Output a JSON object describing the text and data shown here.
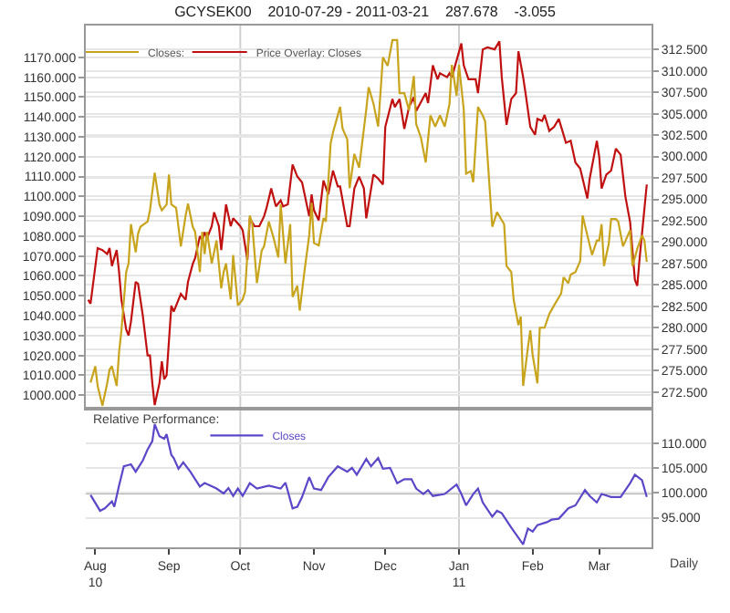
{
  "chart_data": [
    {
      "type": "line",
      "title": "GCYSEK00    2010-07-29 - 2011-03-21    287.678    -3.055",
      "legend": "top left",
      "grid": "y",
      "marker": "none",
      "line_style": "solid",
      "tick_labels": "y",
      "xlim": [
        "2010-07-28",
        "2011-03-23"
      ],
      "ylim": [
        993,
        1186
      ],
      "yticks": [
        {
          "value": 1000,
          "label": "1000.000"
        },
        {
          "value": 1010,
          "label": "1010.000"
        },
        {
          "value": 1020,
          "label": "1020.000"
        },
        {
          "value": 1030,
          "label": "1030.000"
        },
        {
          "value": 1040,
          "label": "1040.000"
        },
        {
          "value": 1050,
          "label": "1050.000"
        },
        {
          "value": 1060,
          "label": "1060.000"
        },
        {
          "value": 1070,
          "label": "1070.000"
        },
        {
          "value": 1080,
          "label": "1080.000"
        },
        {
          "value": 1090,
          "label": "1090.000"
        },
        {
          "value": 1100,
          "label": "1100.000"
        },
        {
          "value": 1110,
          "label": "1110.000"
        },
        {
          "value": 1120,
          "label": "1120.000"
        },
        {
          "value": 1130,
          "label": "1130.000"
        },
        {
          "value": 1140,
          "label": "1140.000"
        },
        {
          "value": 1150,
          "label": "1150.000"
        },
        {
          "value": 1160,
          "label": "1160.000"
        },
        {
          "value": 1170,
          "label": "1170.000"
        }
      ],
      "y2lim": [
        270.5,
        315.3
      ],
      "y2ticks": [
        {
          "value": 272.5,
          "label": "272.500"
        },
        {
          "value": 275,
          "label": "275.000"
        },
        {
          "value": 277.5,
          "label": "277.500"
        },
        {
          "value": 280,
          "label": "280.000"
        },
        {
          "value": 282.5,
          "label": "282.500"
        },
        {
          "value": 285,
          "label": "285.000"
        },
        {
          "value": 287.5,
          "label": "287.500"
        },
        {
          "value": 290,
          "label": "290.000"
        },
        {
          "value": 292.5,
          "label": "292.500"
        },
        {
          "value": 295,
          "label": "295.000"
        },
        {
          "value": 297.5,
          "label": "297.500"
        },
        {
          "value": 300,
          "label": "300.000"
        },
        {
          "value": 302.5,
          "label": "302.500"
        },
        {
          "value": 305,
          "label": "305.000"
        },
        {
          "value": 307.5,
          "label": "307.500"
        },
        {
          "value": 310,
          "label": "310.000"
        },
        {
          "value": 312.5,
          "label": "312.500"
        }
      ],
      "ref_lines": [
        {
          "axis": "x",
          "value": "2010-10-01",
          "color": "#d0d0d0"
        },
        {
          "axis": "x",
          "value": "2011-01-01",
          "color": "#d0d0d0"
        }
      ],
      "series": [
        {
          "name": "Closes:",
          "color": "#c8a41c",
          "axis": "y2",
          "x": [
            "2010-07-30",
            "2010-08-01",
            "2010-08-02",
            "2010-08-04",
            "2010-08-06",
            "2010-08-07",
            "2010-08-08",
            "2010-08-10",
            "2010-08-11",
            "2010-08-12",
            "2010-08-14",
            "2010-08-15",
            "2010-08-16",
            "2010-08-18",
            "2010-08-19",
            "2010-08-20",
            "2010-08-23",
            "2010-08-24",
            "2010-08-26",
            "2010-08-28",
            "2010-08-29",
            "2010-08-31",
            "2010-09-01",
            "2010-09-02",
            "2010-09-04",
            "2010-09-06",
            "2010-09-08",
            "2010-09-09",
            "2010-09-11",
            "2010-09-12",
            "2010-09-14",
            "2010-09-15",
            "2010-09-16",
            "2010-09-17",
            "2010-09-19",
            "2010-09-21",
            "2010-09-23",
            "2010-09-24",
            "2010-09-25",
            "2010-09-27",
            "2010-09-28",
            "2010-09-30",
            "2010-10-02",
            "2010-10-03",
            "2010-10-05",
            "2010-10-06",
            "2010-10-08",
            "2010-10-10",
            "2010-10-11",
            "2010-10-13",
            "2010-10-15",
            "2010-10-17",
            "2010-10-18",
            "2010-10-20",
            "2010-10-22",
            "2010-10-23",
            "2010-10-25",
            "2010-10-26",
            "2010-10-28",
            "2010-10-30",
            "2010-10-31",
            "2010-11-01",
            "2010-11-03",
            "2010-11-05",
            "2010-11-06",
            "2010-11-08",
            "2010-11-09",
            "2010-11-12",
            "2010-11-13",
            "2010-11-15",
            "2010-11-16",
            "2010-11-18",
            "2010-11-20",
            "2010-11-23",
            "2010-11-24",
            "2010-11-26",
            "2010-11-28",
            "2010-11-30",
            "2010-12-02",
            "2010-12-04",
            "2010-12-06",
            "2010-12-07",
            "2010-12-09",
            "2010-12-11",
            "2010-12-13",
            "2010-12-14",
            "2010-12-16",
            "2010-12-18",
            "2010-12-20",
            "2010-12-22",
            "2010-12-24",
            "2010-12-26",
            "2010-12-28",
            "2010-12-29",
            "2010-12-31",
            "2011-01-01",
            "2011-01-03",
            "2011-01-04",
            "2011-01-06",
            "2011-01-07",
            "2011-01-09",
            "2011-01-11",
            "2011-01-12",
            "2011-01-15",
            "2011-01-17",
            "2011-01-20",
            "2011-01-21",
            "2011-01-23",
            "2011-01-24",
            "2011-01-26",
            "2011-01-27",
            "2011-01-28",
            "2011-01-30",
            "2011-01-31",
            "2011-02-01",
            "2011-02-03",
            "2011-02-04",
            "2011-02-06",
            "2011-02-08",
            "2011-02-10",
            "2011-02-13",
            "2011-02-14",
            "2011-02-16",
            "2011-02-17",
            "2011-02-19",
            "2011-02-21",
            "2011-02-22",
            "2011-02-24",
            "2011-02-26",
            "2011-02-28",
            "2011-03-01",
            "2011-03-02",
            "2011-03-03",
            "2011-03-05",
            "2011-03-06",
            "2011-03-08",
            "2011-03-09",
            "2011-03-11",
            "2011-03-14",
            "2011-03-15",
            "2011-03-17",
            "2011-03-19",
            "2011-03-20",
            "2011-03-21"
          ],
          "values": [
            273.6,
            275.5,
            273.2,
            270.9,
            273.5,
            275.1,
            275.5,
            273.2,
            277.1,
            279.7,
            286.5,
            287.5,
            292.1,
            288.8,
            291,
            291.8,
            292.4,
            293.7,
            298.1,
            294.4,
            293.7,
            294.4,
            297.9,
            294.4,
            294,
            289.5,
            293.1,
            294.5,
            291.8,
            291.2,
            286.5,
            291.2,
            288.6,
            291.2,
            287.5,
            290.2,
            284.6,
            286.5,
            287.5,
            283.3,
            288.5,
            282.6,
            283.3,
            284.2,
            293.1,
            292.2,
            285.2,
            289,
            289.5,
            292.4,
            290.5,
            288.2,
            294.4,
            287.5,
            292.1,
            283.6,
            284.9,
            282,
            286.6,
            290.8,
            294.6,
            289.9,
            289.6,
            292.8,
            292.4,
            301.5,
            302.8,
            305.8,
            303.3,
            302,
            296.3,
            300.3,
            298.7,
            305.5,
            308.1,
            306.2,
            303.5,
            311.6,
            310.6,
            313.6,
            313.6,
            307.4,
            307.4,
            305.4,
            309.4,
            303.8,
            302.2,
            299.3,
            304.8,
            303.5,
            304.8,
            303.5,
            306.1,
            310.7,
            307.1,
            310.7,
            305.5,
            298,
            298.3,
            297,
            305.8,
            304.8,
            304.1,
            291.8,
            293.5,
            292.1,
            287.2,
            286.5,
            283.3,
            280.3,
            281.3,
            273.2,
            277.7,
            279.7,
            276.8,
            273.5,
            280,
            280,
            281.6,
            282.6,
            284,
            285.9,
            285.2,
            286.2,
            286.5,
            287.8,
            293.1,
            290.8,
            288.5,
            290.2,
            290.2,
            292.1,
            287.2,
            289.8,
            292.7,
            292.7,
            292.4,
            289.5,
            291.4,
            287.2,
            289.2,
            290.8,
            290.2,
            287.7
          ]
        },
        {
          "name": "Price Overlay: Closes",
          "color": "#c01010",
          "axis": "y",
          "x": [
            "2010-07-29",
            "2010-07-30",
            "2010-08-02",
            "2010-08-04",
            "2010-08-06",
            "2010-08-07",
            "2010-08-08",
            "2010-08-10",
            "2010-08-11",
            "2010-08-12",
            "2010-08-14",
            "2010-08-15",
            "2010-08-16",
            "2010-08-18",
            "2010-08-19",
            "2010-08-21",
            "2010-08-23",
            "2010-08-24",
            "2010-08-25",
            "2010-08-26",
            "2010-08-28",
            "2010-08-29",
            "2010-08-30",
            "2010-08-31",
            "2010-09-02",
            "2010-09-03",
            "2010-09-05",
            "2010-09-06",
            "2010-09-08",
            "2010-09-09",
            "2010-09-11",
            "2010-09-12",
            "2010-09-14",
            "2010-09-15",
            "2010-09-16",
            "2010-09-17",
            "2010-09-19",
            "2010-09-20",
            "2010-09-22",
            "2010-09-23",
            "2010-09-25",
            "2010-09-27",
            "2010-09-28",
            "2010-10-01",
            "2010-10-02",
            "2010-10-04",
            "2010-10-05",
            "2010-10-07",
            "2010-10-09",
            "2010-10-11",
            "2010-10-12",
            "2010-10-14",
            "2010-10-16",
            "2010-10-18",
            "2010-10-19",
            "2010-10-21",
            "2010-10-23",
            "2010-10-25",
            "2010-10-27",
            "2010-10-30",
            "2010-10-31",
            "2010-11-01",
            "2010-11-03",
            "2010-11-05",
            "2010-11-07",
            "2010-11-09",
            "2010-11-11",
            "2010-11-12",
            "2010-11-15",
            "2010-11-16",
            "2010-11-18",
            "2010-11-20",
            "2010-11-22",
            "2010-11-23",
            "2010-11-26",
            "2010-11-28",
            "2010-11-30",
            "2010-12-01",
            "2010-12-04",
            "2010-12-05",
            "2010-12-07",
            "2010-12-09",
            "2010-12-11",
            "2010-12-13",
            "2010-12-14",
            "2010-12-18",
            "2010-12-19",
            "2010-12-21",
            "2010-12-23",
            "2010-12-24",
            "2010-12-27",
            "2010-12-28",
            "2010-12-29",
            "2011-01-02",
            "2011-01-03",
            "2011-01-05",
            "2011-01-08",
            "2011-01-09",
            "2011-01-11",
            "2011-01-13",
            "2011-01-16",
            "2011-01-18",
            "2011-01-19",
            "2011-01-21",
            "2011-01-23",
            "2011-01-25",
            "2011-01-26",
            "2011-01-28",
            "2011-01-29",
            "2011-01-31",
            "2011-02-02",
            "2011-02-03",
            "2011-02-05",
            "2011-02-06",
            "2011-02-08",
            "2011-02-10",
            "2011-02-12",
            "2011-02-15",
            "2011-02-17",
            "2011-02-19",
            "2011-02-21",
            "2011-02-24",
            "2011-02-25",
            "2011-02-28",
            "2011-03-01",
            "2011-03-02",
            "2011-03-04",
            "2011-03-06",
            "2011-03-08",
            "2011-03-10",
            "2011-03-12",
            "2011-03-14",
            "2011-03-16",
            "2011-03-17",
            "2011-03-18",
            "2011-03-21"
          ],
          "values": [
            1048,
            1046,
            1074,
            1073,
            1071,
            1074,
            1065,
            1073,
            1062,
            1048,
            1033,
            1030,
            1037,
            1057,
            1056,
            1040,
            1020,
            1020,
            1006,
            995,
            1006,
            1017,
            1008,
            1010,
            1045,
            1042,
            1048,
            1051,
            1048,
            1057,
            1066,
            1069,
            1080,
            1078,
            1082,
            1079,
            1085,
            1092,
            1085,
            1073,
            1096,
            1085,
            1089,
            1085,
            1083,
            1068,
            1089,
            1085,
            1085,
            1090,
            1094,
            1104,
            1095,
            1098,
            1095,
            1096,
            1116,
            1110,
            1107,
            1090,
            1101,
            1093,
            1088,
            1108,
            1101,
            1113,
            1105,
            1105,
            1085,
            1085,
            1104,
            1110,
            1104,
            1089,
            1111,
            1109,
            1106,
            1135,
            1149,
            1145,
            1149,
            1134,
            1145,
            1150,
            1143,
            1152,
            1147,
            1166,
            1159,
            1162,
            1160,
            1162,
            1160,
            1177,
            1166,
            1159,
            1159,
            1152,
            1174,
            1175,
            1174,
            1178,
            1160,
            1136,
            1149,
            1152,
            1173,
            1160,
            1152,
            1135,
            1131,
            1139,
            1138,
            1141,
            1133,
            1135,
            1139,
            1127,
            1128,
            1117,
            1114,
            1099,
            1109,
            1128,
            1120,
            1104,
            1111,
            1113,
            1124,
            1121,
            1100,
            1087,
            1058,
            1055,
            1069,
            1106
          ]
        }
      ]
    },
    {
      "type": "line",
      "title": "Relative Performance:",
      "legend": "top left",
      "grid": "y",
      "marker": "none",
      "line_style": "solid",
      "xlim": [
        "2010-07-28",
        "2011-03-23"
      ],
      "xticks": [
        {
          "value": "2010-08-01",
          "label": "Aug\n10"
        },
        {
          "value": "2010-09-01",
          "label": "Sep"
        },
        {
          "value": "2010-10-01",
          "label": "Oct"
        },
        {
          "value": "2010-11-01",
          "label": "Nov"
        },
        {
          "value": "2010-12-01",
          "label": "Dec"
        },
        {
          "value": "2011-01-01",
          "label": "Jan\n11"
        },
        {
          "value": "2011-02-01",
          "label": "Feb"
        },
        {
          "value": "2011-03-01",
          "label": "Mar"
        }
      ],
      "y2lim": [
        89,
        117
      ],
      "y2ticks": [
        {
          "value": 95,
          "label": "95.000"
        },
        {
          "value": 100,
          "label": "100.000"
        },
        {
          "value": 105,
          "label": "105.000"
        },
        {
          "value": 110,
          "label": "110.000"
        }
      ],
      "ref_lines": [
        {
          "axis": "x",
          "value": "2010-10-01",
          "color": "#d0d0d0"
        },
        {
          "axis": "x",
          "value": "2011-01-01",
          "color": "#d0d0d0"
        },
        {
          "axis": "y2",
          "value": 100,
          "color": "#b0b0b0"
        }
      ],
      "annotations": [
        "Daily"
      ],
      "series": [
        {
          "name": "Closes",
          "color": "#5a48c8",
          "axis": "y2",
          "x": [
            "2010-07-30",
            "2010-08-03",
            "2010-08-05",
            "2010-08-08",
            "2010-08-09",
            "2010-08-11",
            "2010-08-13",
            "2010-08-16",
            "2010-08-18",
            "2010-08-21",
            "2010-08-23",
            "2010-08-25",
            "2010-08-26",
            "2010-08-28",
            "2010-08-30",
            "2010-08-31",
            "2010-09-02",
            "2010-09-03",
            "2010-09-05",
            "2010-09-07",
            "2010-09-10",
            "2010-09-14",
            "2010-09-16",
            "2010-09-21",
            "2010-09-24",
            "2010-09-26",
            "2010-09-28",
            "2010-09-30",
            "2010-10-02",
            "2010-10-05",
            "2010-10-08",
            "2010-10-13",
            "2010-10-18",
            "2010-10-20",
            "2010-10-23",
            "2010-10-25",
            "2010-10-27",
            "2010-10-30",
            "2010-11-01",
            "2010-11-04",
            "2010-11-07",
            "2010-11-09",
            "2010-11-11",
            "2010-11-15",
            "2010-11-17",
            "2010-11-19",
            "2010-11-23",
            "2010-11-25",
            "2010-11-28",
            "2010-11-30",
            "2010-12-03",
            "2010-12-06",
            "2010-12-09",
            "2010-12-12",
            "2010-12-14",
            "2010-12-17",
            "2010-12-19",
            "2010-12-21",
            "2010-12-26",
            "2010-12-31",
            "2011-01-02",
            "2011-01-04",
            "2011-01-07",
            "2011-01-09",
            "2011-01-11",
            "2011-01-15",
            "2011-01-17",
            "2011-01-19",
            "2011-01-23",
            "2011-01-28",
            "2011-01-30",
            "2011-02-01",
            "2011-02-03",
            "2011-02-07",
            "2011-02-09",
            "2011-02-12",
            "2011-02-16",
            "2011-02-19",
            "2011-02-23",
            "2011-02-25",
            "2011-02-28",
            "2011-03-02",
            "2011-03-06",
            "2011-03-10",
            "2011-03-14",
            "2011-03-16",
            "2011-03-19",
            "2011-03-21"
          ],
          "values": [
            99.6,
            96.4,
            96.9,
            98.3,
            97.2,
            101.5,
            105.4,
            105.8,
            104.3,
            106.6,
            108.8,
            110.5,
            113.9,
            111.5,
            111,
            111.9,
            107.7,
            107.1,
            104.9,
            106.2,
            104.3,
            101.3,
            102,
            100.9,
            99.9,
            101,
            99.4,
            100.9,
            99.4,
            102,
            100.9,
            101.5,
            100.9,
            102.1,
            96.9,
            97.2,
            99.2,
            103.2,
            100.9,
            100.6,
            103.2,
            104.3,
            105.4,
            104.3,
            105.1,
            103.7,
            106.9,
            105.4,
            107.1,
            104.9,
            105.1,
            102,
            102.8,
            102.8,
            100.9,
            99.8,
            100.6,
            99.4,
            99.8,
            101.7,
            99.8,
            97.5,
            99.8,
            100.9,
            98.1,
            95.2,
            96.4,
            95.9,
            93,
            89.6,
            92.8,
            92.2,
            93.5,
            94.1,
            94.6,
            94.8,
            96.9,
            97.5,
            100.6,
            99.4,
            98.1,
            99.8,
            99.2,
            99.2,
            102,
            103.7,
            102.6,
            99.2
          ]
        }
      ]
    }
  ]
}
